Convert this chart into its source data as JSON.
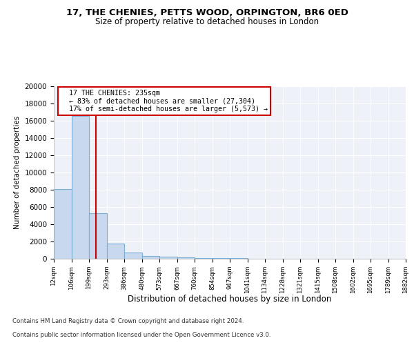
{
  "title1": "17, THE CHENIES, PETTS WOOD, ORPINGTON, BR6 0ED",
  "title2": "Size of property relative to detached houses in London",
  "xlabel": "Distribution of detached houses by size in London",
  "ylabel": "Number of detached properties",
  "bar_edges": [
    12,
    106,
    199,
    293,
    386,
    480,
    573,
    667,
    760,
    854,
    947,
    1041,
    1134,
    1228,
    1321,
    1415,
    1508,
    1602,
    1695,
    1789,
    1882
  ],
  "bar_heights": [
    8050,
    16600,
    5300,
    1800,
    700,
    330,
    220,
    155,
    110,
    80,
    55,
    40,
    25,
    18,
    13,
    10,
    8,
    6,
    4,
    3
  ],
  "bar_color": "#c8d8ee",
  "bar_edge_color": "#7aaed4",
  "property_size": 235,
  "property_label": "17 THE CHENIES: 235sqm",
  "annotation_line1": "← 83% of detached houses are smaller (27,304)",
  "annotation_line2": "17% of semi-detached houses are larger (5,573) →",
  "red_line_color": "#cc0000",
  "annotation_box_color": "#cc0000",
  "ylim": [
    0,
    20000
  ],
  "yticks": [
    0,
    2000,
    4000,
    6000,
    8000,
    10000,
    12000,
    14000,
    16000,
    18000,
    20000
  ],
  "bg_color": "#ffffff",
  "plot_bg_color": "#eef2f8",
  "grid_color": "#ffffff",
  "footer_line1": "Contains HM Land Registry data © Crown copyright and database right 2024.",
  "footer_line2": "Contains public sector information licensed under the Open Government Licence v3.0."
}
